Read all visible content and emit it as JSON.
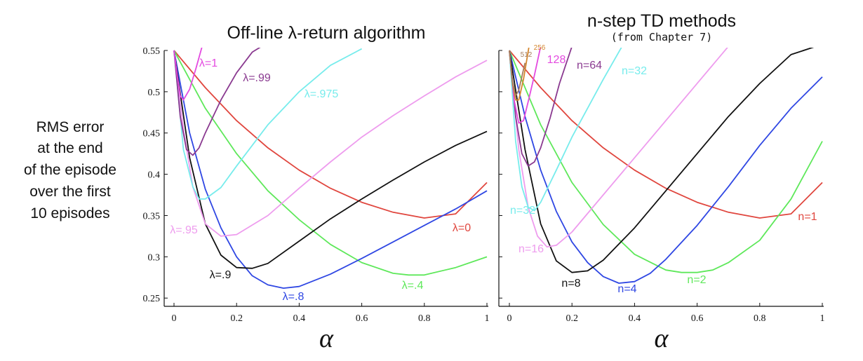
{
  "y_side_label": [
    "RMS error",
    "at the end",
    "of the episode",
    "over the first",
    "10 episodes"
  ],
  "chart_data": [
    {
      "type": "line",
      "title": "Off-line λ-return algorithm",
      "subtitle": "",
      "xlabel": "α",
      "ylabel": "RMS error at the end of the episode over the first 10 episodes",
      "xlim": [
        0,
        1
      ],
      "ylim": [
        0.24,
        0.55
      ],
      "xticks": [
        "0",
        "0.2",
        "0.4",
        "0.6",
        "0.8",
        "1"
      ],
      "yticks": [
        "0.25",
        "0.3",
        "0.35",
        "0.4",
        "0.45",
        "0.5",
        "0.55"
      ],
      "grid": false,
      "series": [
        {
          "name": "λ=0",
          "color": "#e0463e",
          "x": [
            0,
            0.1,
            0.2,
            0.3,
            0.4,
            0.5,
            0.6,
            0.7,
            0.8,
            0.9,
            1.0
          ],
          "y": [
            0.55,
            0.505,
            0.465,
            0.432,
            0.405,
            0.383,
            0.366,
            0.354,
            0.347,
            0.352,
            0.39
          ]
        },
        {
          "name": "λ=.4",
          "color": "#5ee85a",
          "x": [
            0,
            0.1,
            0.2,
            0.3,
            0.4,
            0.5,
            0.6,
            0.7,
            0.75,
            0.8,
            0.9,
            1.0
          ],
          "y": [
            0.55,
            0.48,
            0.425,
            0.38,
            0.345,
            0.315,
            0.293,
            0.28,
            0.278,
            0.278,
            0.287,
            0.3
          ]
        },
        {
          "name": "λ=.8",
          "color": "#2f47e3",
          "x": [
            0,
            0.05,
            0.1,
            0.15,
            0.2,
            0.25,
            0.3,
            0.35,
            0.4,
            0.5,
            0.6,
            0.7,
            0.8,
            0.9,
            1.0
          ],
          "y": [
            0.55,
            0.45,
            0.382,
            0.335,
            0.3,
            0.277,
            0.266,
            0.262,
            0.264,
            0.279,
            0.298,
            0.318,
            0.338,
            0.358,
            0.38
          ]
        },
        {
          "name": "λ=.9",
          "color": "#111111",
          "x": [
            0,
            0.05,
            0.1,
            0.15,
            0.2,
            0.25,
            0.3,
            0.4,
            0.5,
            0.6,
            0.7,
            0.8,
            0.9,
            1.0
          ],
          "y": [
            0.55,
            0.42,
            0.34,
            0.302,
            0.287,
            0.286,
            0.292,
            0.319,
            0.346,
            0.37,
            0.393,
            0.415,
            0.435,
            0.452
          ]
        },
        {
          "name": "λ=.95",
          "color": "#ee9cee",
          "x": [
            0,
            0.03,
            0.06,
            0.1,
            0.15,
            0.2,
            0.3,
            0.4,
            0.5,
            0.6,
            0.7,
            0.8,
            0.9,
            1.0
          ],
          "y": [
            0.55,
            0.455,
            0.385,
            0.34,
            0.325,
            0.327,
            0.35,
            0.383,
            0.415,
            0.445,
            0.471,
            0.495,
            0.518,
            0.538
          ]
        },
        {
          "name": "λ=.975",
          "color": "#77ecec",
          "x": [
            0,
            0.03,
            0.06,
            0.08,
            0.1,
            0.15,
            0.2,
            0.3,
            0.4,
            0.5,
            0.6
          ],
          "y": [
            0.55,
            0.43,
            0.385,
            0.37,
            0.37,
            0.384,
            0.41,
            0.46,
            0.5,
            0.532,
            0.552
          ]
        },
        {
          "name": "λ=.99",
          "color": "#8a3a90",
          "x": [
            0,
            0.02,
            0.04,
            0.06,
            0.08,
            0.1,
            0.15,
            0.2,
            0.25,
            0.28
          ],
          "y": [
            0.55,
            0.47,
            0.43,
            0.423,
            0.432,
            0.45,
            0.49,
            0.523,
            0.548,
            0.555
          ]
        },
        {
          "name": "λ=1",
          "color": "#e44ae0",
          "x": [
            0,
            0.01,
            0.02,
            0.03,
            0.05,
            0.07,
            0.09
          ],
          "y": [
            0.55,
            0.52,
            0.495,
            0.49,
            0.503,
            0.528,
            0.555
          ]
        }
      ]
    },
    {
      "type": "line",
      "title": "n-step TD methods",
      "subtitle": "(from Chapter 7)",
      "xlabel": "α",
      "ylabel": "",
      "xlim": [
        0,
        1
      ],
      "ylim": [
        0.24,
        0.55
      ],
      "xticks": [
        "0",
        "0.2",
        "0.4",
        "0.6",
        "0.8",
        "1"
      ],
      "yticks": [],
      "grid": false,
      "series": [
        {
          "name": "n=1",
          "color": "#e0463e",
          "x": [
            0,
            0.1,
            0.2,
            0.3,
            0.4,
            0.5,
            0.6,
            0.7,
            0.8,
            0.9,
            1.0
          ],
          "y": [
            0.55,
            0.505,
            0.465,
            0.432,
            0.405,
            0.383,
            0.366,
            0.354,
            0.347,
            0.352,
            0.39
          ]
        },
        {
          "name": "n=2",
          "color": "#5ee85a",
          "x": [
            0,
            0.1,
            0.2,
            0.3,
            0.4,
            0.5,
            0.55,
            0.6,
            0.65,
            0.7,
            0.8,
            0.9,
            1.0
          ],
          "y": [
            0.55,
            0.46,
            0.39,
            0.339,
            0.303,
            0.284,
            0.281,
            0.281,
            0.284,
            0.293,
            0.32,
            0.37,
            0.44
          ]
        },
        {
          "name": "n=4",
          "color": "#2f47e3",
          "x": [
            0,
            0.05,
            0.1,
            0.15,
            0.2,
            0.25,
            0.3,
            0.35,
            0.4,
            0.45,
            0.5,
            0.6,
            0.7,
            0.8,
            0.9,
            1.0
          ],
          "y": [
            0.55,
            0.47,
            0.405,
            0.355,
            0.318,
            0.293,
            0.276,
            0.268,
            0.27,
            0.28,
            0.297,
            0.338,
            0.385,
            0.435,
            0.48,
            0.518
          ]
        },
        {
          "name": "n=8",
          "color": "#111111",
          "x": [
            0,
            0.05,
            0.1,
            0.15,
            0.2,
            0.25,
            0.3,
            0.4,
            0.5,
            0.6,
            0.7,
            0.8,
            0.9,
            0.98
          ],
          "y": [
            0.55,
            0.43,
            0.34,
            0.295,
            0.281,
            0.283,
            0.296,
            0.335,
            0.38,
            0.425,
            0.47,
            0.51,
            0.545,
            0.555
          ]
        },
        {
          "name": "n=16",
          "color": "#ee9cee",
          "x": [
            0,
            0.03,
            0.06,
            0.09,
            0.12,
            0.15,
            0.2,
            0.3,
            0.4,
            0.5,
            0.6,
            0.7
          ],
          "y": [
            0.55,
            0.43,
            0.36,
            0.325,
            0.312,
            0.314,
            0.33,
            0.375,
            0.42,
            0.465,
            0.51,
            0.555
          ]
        },
        {
          "name": "n=32",
          "color": "#77ecec",
          "x": [
            0,
            0.02,
            0.04,
            0.06,
            0.08,
            0.1,
            0.15,
            0.2,
            0.3,
            0.36
          ],
          "y": [
            0.55,
            0.44,
            0.385,
            0.36,
            0.356,
            0.366,
            0.405,
            0.445,
            0.515,
            0.555
          ]
        },
        {
          "name": "n=64",
          "color": "#8a3a90",
          "x": [
            0,
            0.02,
            0.04,
            0.06,
            0.08,
            0.1,
            0.13,
            0.16,
            0.2
          ],
          "y": [
            0.55,
            0.47,
            0.425,
            0.41,
            0.415,
            0.432,
            0.468,
            0.51,
            0.555
          ]
        },
        {
          "name": "128",
          "color": "#e44ae0",
          "x": [
            0,
            0.015,
            0.03,
            0.045,
            0.06,
            0.08,
            0.1
          ],
          "y": [
            0.55,
            0.49,
            0.462,
            0.465,
            0.488,
            0.52,
            0.555
          ]
        },
        {
          "name": "256",
          "color": "#d4862e",
          "x": [
            0,
            0.01,
            0.02,
            0.03,
            0.045,
            0.065
          ],
          "y": [
            0.55,
            0.51,
            0.49,
            0.49,
            0.515,
            0.56
          ]
        },
        {
          "name": "512",
          "color": "#a67d5c",
          "x": [
            0,
            0.01,
            0.02,
            0.03,
            0.05
          ],
          "y": [
            0.55,
            0.512,
            0.495,
            0.502,
            0.535
          ]
        }
      ]
    }
  ]
}
